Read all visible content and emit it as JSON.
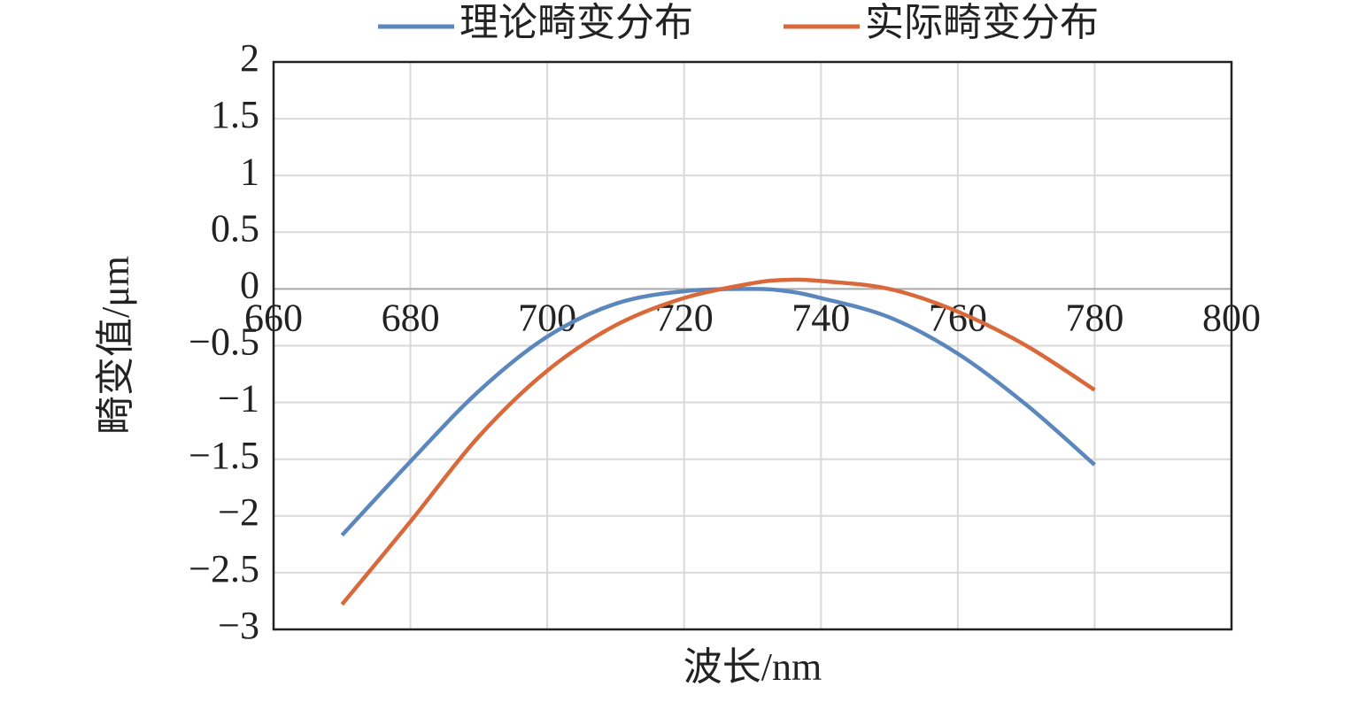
{
  "chart_data": {
    "type": "line",
    "x_label": "波长/nm",
    "y_label": "畸变值/μm",
    "x": [
      670,
      680,
      690,
      700,
      710,
      720,
      730,
      735,
      740,
      750,
      760,
      770,
      780
    ],
    "series": [
      {
        "name": "理论畸变分布",
        "color": "#5b87bd",
        "values": [
          -2.17,
          -1.52,
          -0.9,
          -0.42,
          -0.13,
          -0.02,
          0,
          -0.02,
          -0.08,
          -0.25,
          -0.57,
          -1.02,
          -1.55
        ]
      },
      {
        "name": "实际畸变分布",
        "color": "#d9693a",
        "values": [
          -2.78,
          -2.05,
          -1.3,
          -0.72,
          -0.32,
          -0.08,
          0.05,
          0.08,
          0.07,
          0.0,
          -0.2,
          -0.5,
          -0.89
        ]
      }
    ],
    "xlim": [
      660,
      800
    ],
    "xticks": [
      660,
      680,
      700,
      720,
      740,
      760,
      780,
      800
    ],
    "ylim": [
      -3,
      2
    ],
    "yticks": [
      {
        "value": -3,
        "label": "−3"
      },
      {
        "value": -2.5,
        "label": "−2.5"
      },
      {
        "value": -2,
        "label": "−2"
      },
      {
        "value": -1.5,
        "label": "−1.5"
      },
      {
        "value": -1,
        "label": "−1"
      },
      {
        "value": -0.5,
        "label": "−0.5"
      },
      0,
      0.5,
      1,
      1.5,
      2
    ],
    "grid": true,
    "legend": "top"
  }
}
